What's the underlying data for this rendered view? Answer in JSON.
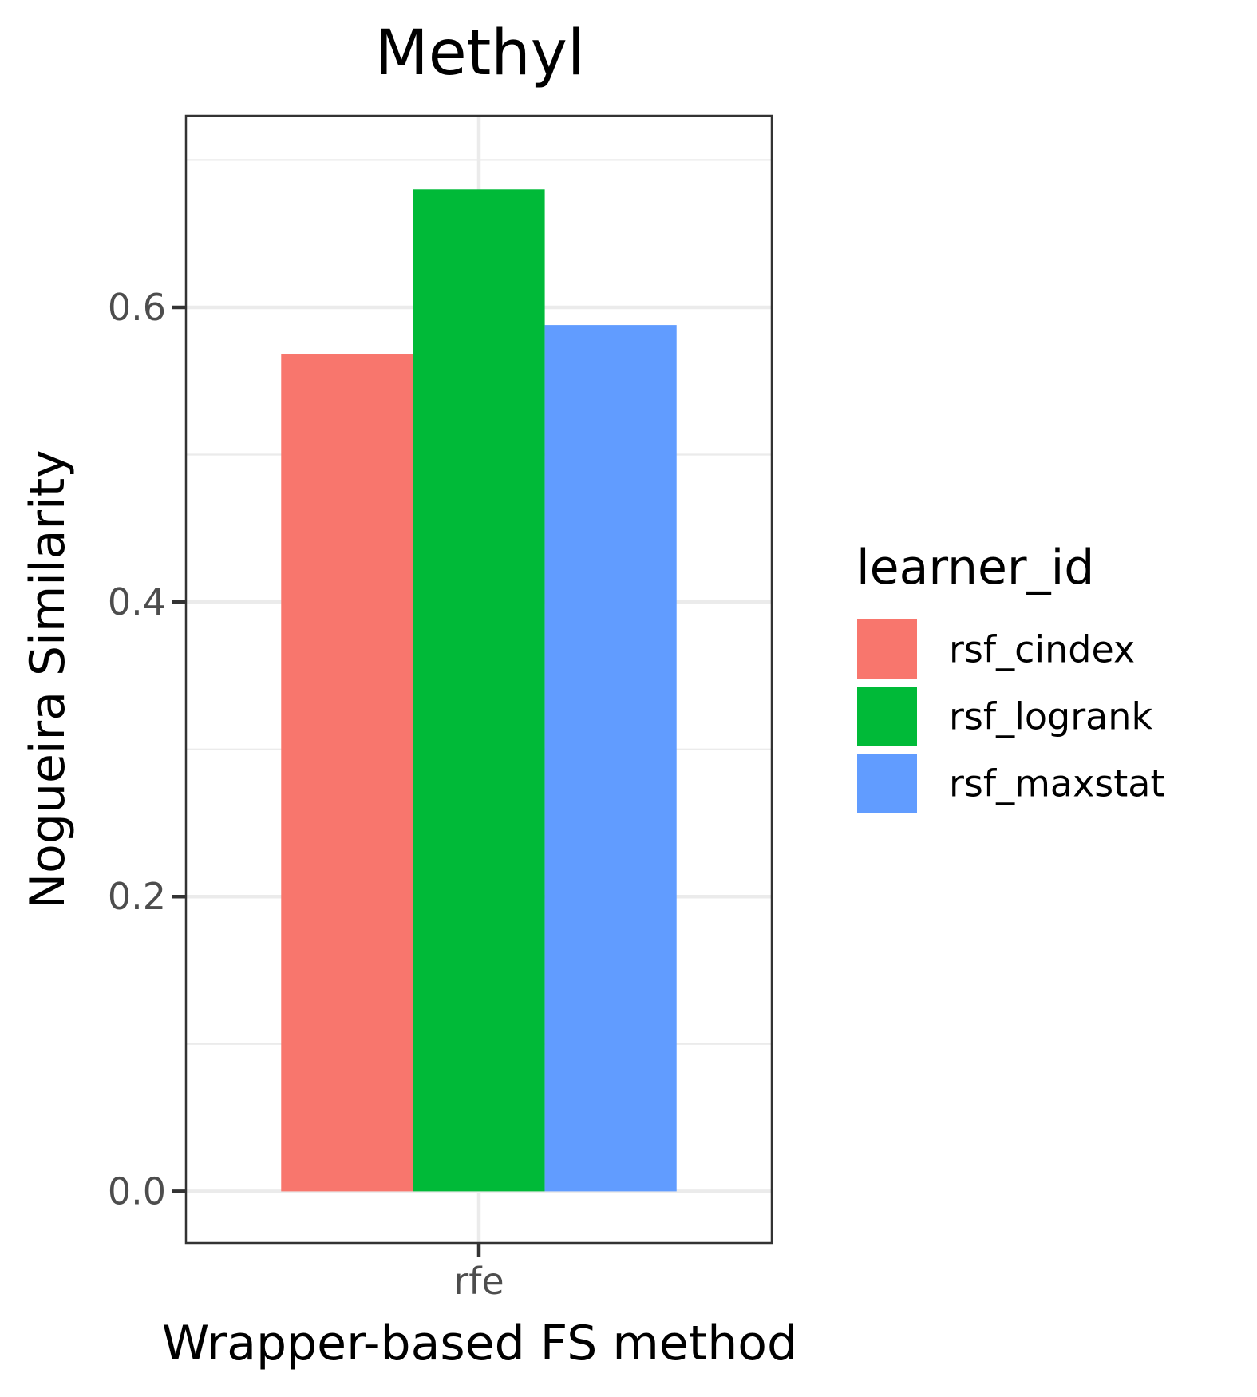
{
  "chart_data": {
    "type": "bar",
    "title": "Methyl",
    "xlabel": "Wrapper-based FS method",
    "ylabel": "Nogueira Similarity",
    "categories": [
      "rfe"
    ],
    "series": [
      {
        "name": "rsf_cindex",
        "color": "#F8766D",
        "values": [
          0.568
        ]
      },
      {
        "name": "rsf_logrank",
        "color": "#00BA38",
        "values": [
          0.68
        ]
      },
      {
        "name": "rsf_maxstat",
        "color": "#619CFF",
        "values": [
          0.588
        ]
      }
    ],
    "ylim": [
      -0.035,
      0.73
    ],
    "yticks": [
      0.0,
      0.2,
      0.4,
      0.6
    ],
    "ytick_labels": [
      "0.0",
      "0.2",
      "0.4",
      "0.6"
    ],
    "legend": {
      "title": "learner_id",
      "position": "right"
    },
    "grid": true,
    "theme": "bw"
  }
}
